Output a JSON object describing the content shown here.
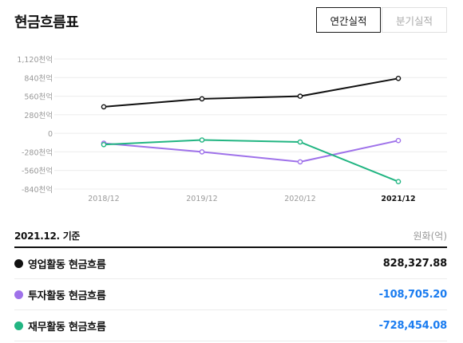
{
  "header": {
    "title": "현금흐름표",
    "tab_annual": "연간실적",
    "tab_quarterly": "분기실적"
  },
  "colors": {
    "operating": "#111111",
    "investing": "#9f72ea",
    "financing": "#22b582",
    "negative_value": "#1a7cf0",
    "grid": "#ececec",
    "tick": "#999999"
  },
  "chart_data": {
    "type": "line",
    "categories": [
      "2018/12",
      "2019/12",
      "2020/12",
      "2021/12"
    ],
    "y_ticks": [
      "1,120천억",
      "840천억",
      "560천억",
      "280천억",
      "0",
      "-280천억",
      "-560천억",
      "-840천억"
    ],
    "ylim": [
      -840,
      1120
    ],
    "series": [
      {
        "key": "operating",
        "values": [
          400,
          520,
          560,
          828
        ]
      },
      {
        "key": "investing",
        "values": [
          -150,
          -280,
          -430,
          -109
        ]
      },
      {
        "key": "financing",
        "values": [
          -170,
          -100,
          -130,
          -728
        ]
      }
    ]
  },
  "summary": {
    "basis": "2021.12. 기준",
    "unit": "원화(억)",
    "rows": [
      {
        "label": "영업활동 현금흐름",
        "value": "828,327.88"
      },
      {
        "label": "투자활동 현금흐름",
        "value": "-108,705.20"
      },
      {
        "label": "재무활동 현금흐름",
        "value": "-728,454.08"
      }
    ]
  }
}
